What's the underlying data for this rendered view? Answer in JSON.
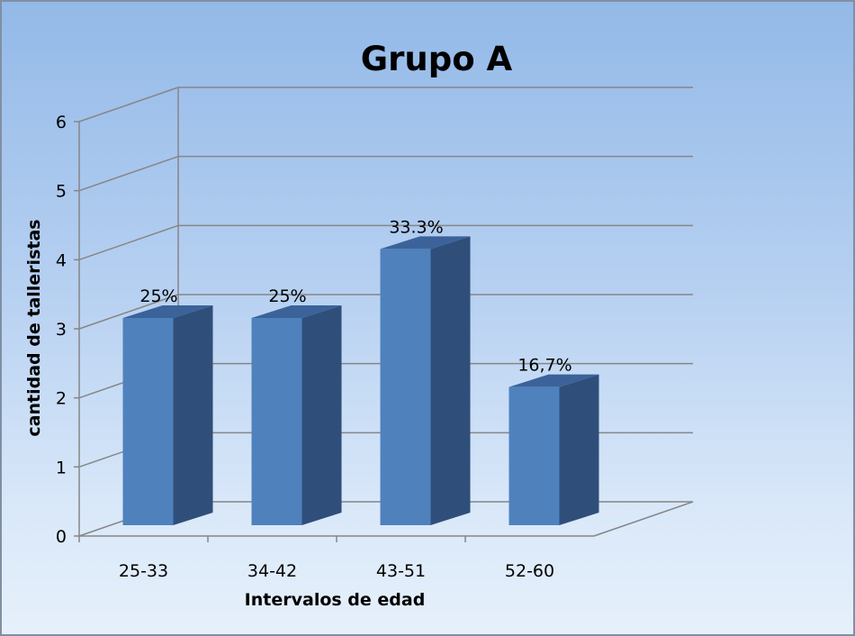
{
  "chart_data": {
    "type": "bar",
    "title": "Grupo A",
    "xlabel": "Intervalos de edad",
    "ylabel": "cantidad de talleristas",
    "categories": [
      "25-33",
      "34-42",
      "43-51",
      "52-60"
    ],
    "values": [
      3,
      3,
      4,
      2
    ],
    "data_labels": [
      "25%",
      "25%",
      "33.3%",
      "16,7%"
    ],
    "ylim": [
      0,
      6
    ],
    "yticks": [
      "0",
      "1",
      "2",
      "3",
      "4",
      "5",
      "6"
    ],
    "grid": true,
    "style": "3d-column",
    "colors": {
      "bar_front": "#4f81bd",
      "bar_side": "#2f4f7a",
      "bar_top": "#3b639a",
      "grid": "#868686"
    }
  }
}
